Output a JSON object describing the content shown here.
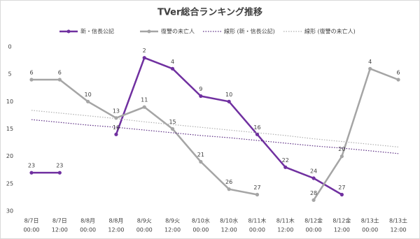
{
  "chart_data": {
    "type": "line",
    "title": "TVer総合ランキング推移",
    "categories": [
      [
        "8/7日",
        "00:00"
      ],
      [
        "8/7日",
        "12:00"
      ],
      [
        "8/8月",
        "00:00"
      ],
      [
        "8/8月",
        "12:00"
      ],
      [
        "8/9火",
        "00:00"
      ],
      [
        "8/9火",
        "12:00"
      ],
      [
        "8/10水",
        "00:00"
      ],
      [
        "8/10水",
        "12:00"
      ],
      [
        "8/11木",
        "00:00"
      ],
      [
        "8/11木",
        "12:00"
      ],
      [
        "8/12金",
        "00:00"
      ],
      [
        "8/12金",
        "12:00"
      ],
      [
        "8/13土",
        "00:00"
      ],
      [
        "8/13土",
        "12:00"
      ]
    ],
    "series": [
      {
        "name": "新・信長公記",
        "color": "#7030a0",
        "style": "solid",
        "labels": true,
        "values": [
          23,
          23,
          null,
          16,
          2,
          4,
          9,
          10,
          16,
          22,
          24,
          27,
          null,
          null
        ]
      },
      {
        "name": "復讐の未亡人",
        "color": "#a5a5a5",
        "style": "solid",
        "labels": true,
        "values": [
          6,
          6,
          10,
          13,
          11,
          15,
          21,
          26,
          27,
          null,
          28,
          20,
          4,
          6
        ]
      },
      {
        "name": "線形 (新・信長公記)",
        "color": "#5b2c83",
        "style": "dotted",
        "labels": false,
        "values": [
          13.3,
          13.8,
          14.3,
          14.7,
          15.2,
          15.7,
          16.2,
          16.6,
          17.1,
          17.6,
          18.1,
          18.5,
          19.0,
          19.5
        ]
      },
      {
        "name": "線形 (復讐の未亡人)",
        "color": "#b0b0b0",
        "style": "dotted",
        "labels": false,
        "values": [
          11.6,
          12.1,
          12.6,
          13.1,
          13.7,
          14.2,
          14.7,
          15.2,
          15.7,
          16.2,
          16.8,
          17.3,
          17.8,
          18.3
        ]
      }
    ],
    "ylim": [
      0,
      30
    ],
    "y_inverted": true,
    "yticks": [
      0,
      5,
      10,
      15,
      20,
      25,
      30
    ],
    "grid": false,
    "legend": "top"
  }
}
